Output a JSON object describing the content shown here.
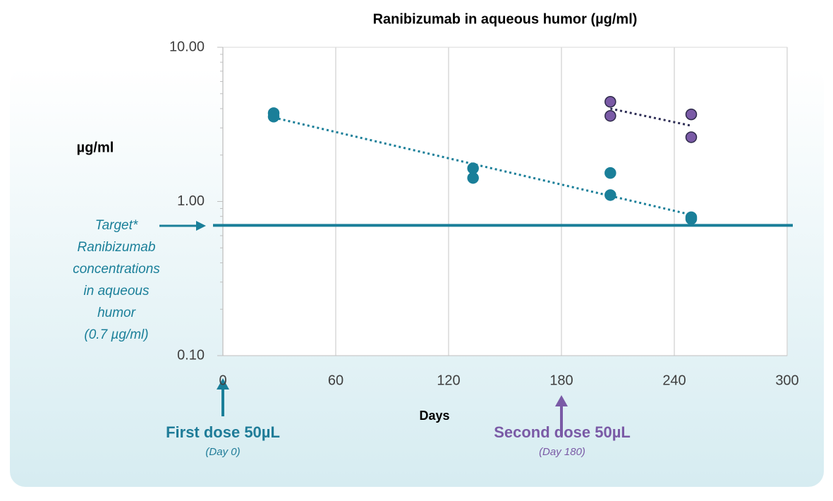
{
  "chart_data": {
    "type": "scatter",
    "title": "Ranibizumab in aqueous humor (µg/ml)",
    "y_label": "µg/ml",
    "x_label": "Days",
    "xlim": [
      0,
      300
    ],
    "xticks": [
      0,
      60,
      120,
      180,
      240,
      300
    ],
    "ylim": [
      0.1,
      10
    ],
    "log_y": true,
    "yticks": [
      {
        "value": 0.1,
        "label": "0.10"
      },
      {
        "value": 1,
        "label": "1.00"
      },
      {
        "value": 10,
        "label": "10.00"
      }
    ],
    "yminor_ticks": [
      0.2,
      0.3,
      0.4,
      0.5,
      0.6,
      0.7,
      0.8,
      0.9,
      2,
      3,
      4,
      5,
      6,
      7,
      8,
      9
    ],
    "grid": true,
    "series": [
      {
        "color": "#1a7f99",
        "x": [
          27,
          27,
          133,
          133,
          206,
          206,
          249,
          249
        ],
        "values": [
          3.74,
          3.55,
          1.64,
          1.42,
          1.53,
          1.1,
          0.79,
          0.77
        ]
      },
      {
        "color": "#7a5aa6",
        "outline": "#2e2a4a",
        "x": [
          206,
          206,
          249,
          249
        ],
        "values": [
          4.43,
          3.59,
          3.67,
          2.61
        ]
      }
    ],
    "trendlines": [
      {
        "color": "#1a7f99",
        "x": [
          27,
          249
        ],
        "values": [
          3.5,
          0.82
        ]
      },
      {
        "color": "#2c2c54",
        "x": [
          206,
          249
        ],
        "values": [
          4.0,
          3.1
        ]
      }
    ],
    "target": {
      "value": 0.7,
      "color": "#1a7f99",
      "label_lines": [
        "Target*",
        "Ranibizumab",
        "concentrations",
        "in aqueous",
        "humor",
        "(0.7 µg/ml)"
      ]
    },
    "annotations": {
      "first_dose": "First dose 50µL",
      "first_dose_day": "(Day 0)",
      "second_dose": "Second dose 50µL",
      "second_dose_day": "(Day 180)"
    }
  }
}
